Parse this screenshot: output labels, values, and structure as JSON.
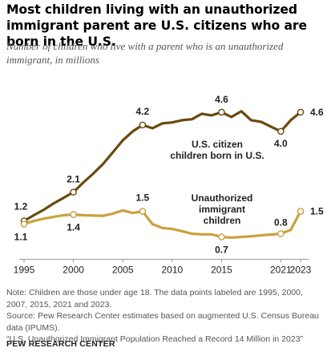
{
  "chart_data": {
    "type": "line",
    "title": "Most children living with an unauthorized immigrant parent are U.S. citizens who are born in the U.S.",
    "subtitle": "Number of children who live with a parent who is an unauthorized immigrant, in millions",
    "xlabel": "",
    "ylabel": "",
    "xlim": [
      1995,
      2023
    ],
    "ylim": [
      0,
      5.3
    ],
    "grid": false,
    "x_tick_labels": [
      "1995",
      "2000",
      "2005",
      "2010",
      "2015",
      "2021",
      "2023"
    ],
    "x_ticks": [
      1995,
      2000,
      2005,
      2010,
      2015,
      2021,
      2023
    ],
    "series": [
      {
        "name": "U.S. citizen children born in U.S.",
        "name_lines": [
          "U.S. citizen",
          "children born in U.S."
        ],
        "color": "#6b4a10",
        "x": [
          1995,
          1996,
          1997,
          1998,
          1999,
          2000,
          2001,
          2002,
          2003,
          2004,
          2005,
          2006,
          2007,
          2008,
          2009,
          2010,
          2011,
          2012,
          2013,
          2014,
          2015,
          2016,
          2017,
          2018,
          2019,
          2021,
          2022,
          2023
        ],
        "values": [
          1.2,
          1.38,
          1.55,
          1.75,
          1.92,
          2.1,
          2.4,
          2.68,
          2.98,
          3.35,
          3.72,
          4.0,
          4.2,
          4.1,
          4.25,
          4.28,
          4.35,
          4.38,
          4.55,
          4.5,
          4.6,
          4.45,
          4.63,
          4.35,
          4.3,
          4.0,
          4.35,
          4.6
        ],
        "labels": [
          {
            "x": 1995,
            "text": "1.2"
          },
          {
            "x": 2000,
            "text": "2.1"
          },
          {
            "x": 2007,
            "text": "4.2"
          },
          {
            "x": 2015,
            "text": "4.6"
          },
          {
            "x": 2021,
            "text": "4.0"
          },
          {
            "x": 2023,
            "text": "4.6"
          }
        ]
      },
      {
        "name": "Unauthorized immigrant children",
        "name_lines": [
          "Unauthorized",
          "immigrant",
          "children"
        ],
        "color": "#c9a13f",
        "x": [
          1995,
          1996,
          1997,
          1998,
          1999,
          2000,
          2001,
          2002,
          2003,
          2004,
          2005,
          2006,
          2007,
          2008,
          2009,
          2010,
          2011,
          2012,
          2013,
          2014,
          2015,
          2016,
          2017,
          2018,
          2019,
          2021,
          2022,
          2023
        ],
        "values": [
          1.1,
          1.2,
          1.27,
          1.33,
          1.38,
          1.4,
          1.38,
          1.37,
          1.36,
          1.43,
          1.53,
          1.45,
          1.5,
          1.1,
          0.98,
          0.95,
          0.88,
          0.8,
          0.78,
          0.78,
          0.7,
          0.68,
          0.7,
          0.72,
          0.75,
          0.8,
          0.92,
          1.5
        ],
        "labels": [
          {
            "x": 1995,
            "text": "1.1"
          },
          {
            "x": 2000,
            "text": "1.4"
          },
          {
            "x": 2007,
            "text": "1.5"
          },
          {
            "x": 2015,
            "text": "0.7"
          },
          {
            "x": 2021,
            "text": "0.8"
          },
          {
            "x": 2023,
            "text": "1.5"
          }
        ]
      }
    ]
  },
  "notes": [
    "Note: Children are those under age 18. The data points labeled are 1995, 2000, 2007, 2015, 2021 and 2023.",
    "Source: Pew Research Center estimates based on augmented U.S. Census Bureau data (IPUMS).",
    "“U.S. Unauthorized Immigrant Population Reached a Record 14 Million in 2023”"
  ],
  "brand": "PEW RESEARCH CENTER",
  "colors": {
    "axis": "#999999",
    "text": "#222222",
    "muted": "#555555"
  }
}
